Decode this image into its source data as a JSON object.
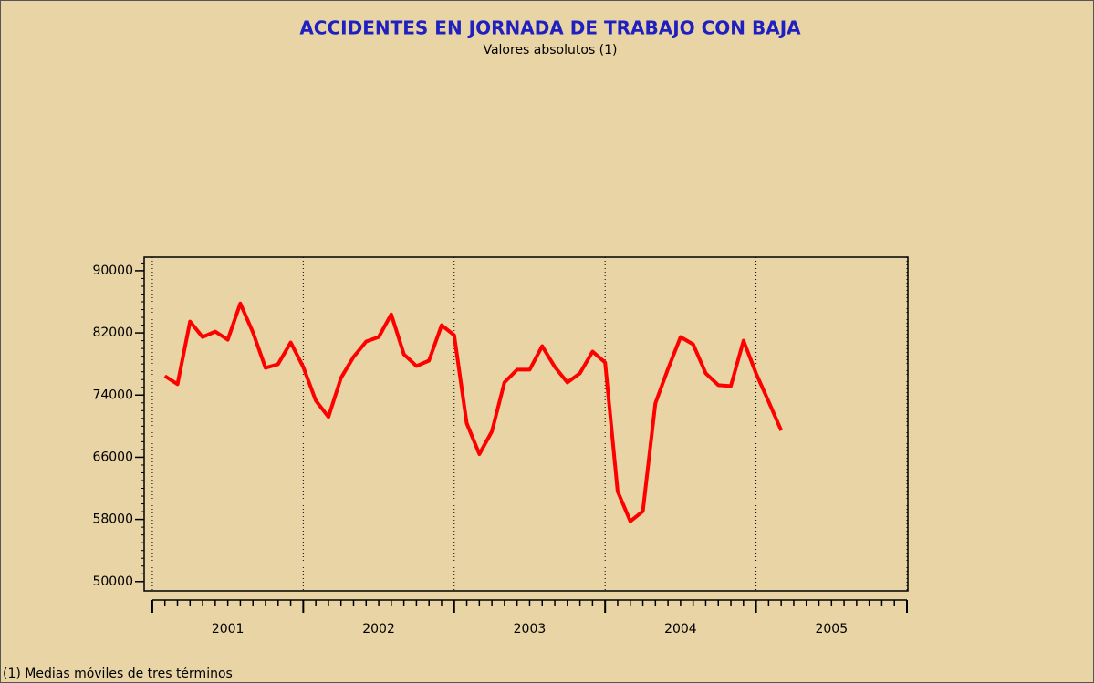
{
  "chart_data": {
    "type": "line",
    "title": "ACCIDENTES EN JORNADA DE TRABAJO CON BAJA",
    "subtitle": "Valores absolutos (1)",
    "footnote": "(1) Medias móviles de tres términos",
    "x": [
      2001.083,
      2001.167,
      2001.25,
      2001.333,
      2001.417,
      2001.5,
      2001.583,
      2001.667,
      2001.75,
      2001.833,
      2001.917,
      2002.0,
      2002.083,
      2002.167,
      2002.25,
      2002.333,
      2002.417,
      2002.5,
      2002.583,
      2002.667,
      2002.75,
      2002.833,
      2002.917,
      2003.0,
      2003.083,
      2003.167,
      2003.25,
      2003.333,
      2003.417,
      2003.5,
      2003.583,
      2003.667,
      2003.75,
      2003.833,
      2003.917,
      2004.0,
      2004.083,
      2004.167,
      2004.25,
      2004.333,
      2004.417,
      2004.5,
      2004.583,
      2004.667,
      2004.75,
      2004.833,
      2004.917,
      2005.0,
      2005.083,
      2005.167
    ],
    "series": [
      {
        "color": "#ff0000",
        "values": [
          76450,
          75400,
          83460,
          81470,
          82170,
          81120,
          85790,
          82060,
          77500,
          77970,
          80770,
          77620,
          73300,
          71190,
          76210,
          78900,
          80890,
          81470,
          84390,
          79250,
          77730,
          78430,
          82990,
          81710,
          70370,
          66400,
          69320,
          75630,
          77270,
          77270,
          80300,
          77620,
          75630,
          76800,
          79600,
          78200,
          61610,
          57760,
          59040,
          72940,
          77380,
          81470,
          80540,
          76800,
          75280,
          75160,
          81000,
          76800,
          73180,
          69440
        ]
      }
    ],
    "xlim": [
      2000.946,
      2006.006
    ],
    "xticks": [
      {
        "value": 2001.5,
        "label": "2001"
      },
      {
        "value": 2002.5,
        "label": "2002"
      },
      {
        "value": 2003.5,
        "label": "2003"
      },
      {
        "value": 2004.5,
        "label": "2004"
      },
      {
        "value": 2005.5,
        "label": "2005"
      }
    ],
    "xgrid": [
      2001,
      2002,
      2003,
      2004,
      2005,
      2006
    ],
    "ylim": [
      48800,
      91750
    ],
    "yticks": [
      50000,
      58000,
      66000,
      74000,
      82000,
      90000
    ]
  }
}
